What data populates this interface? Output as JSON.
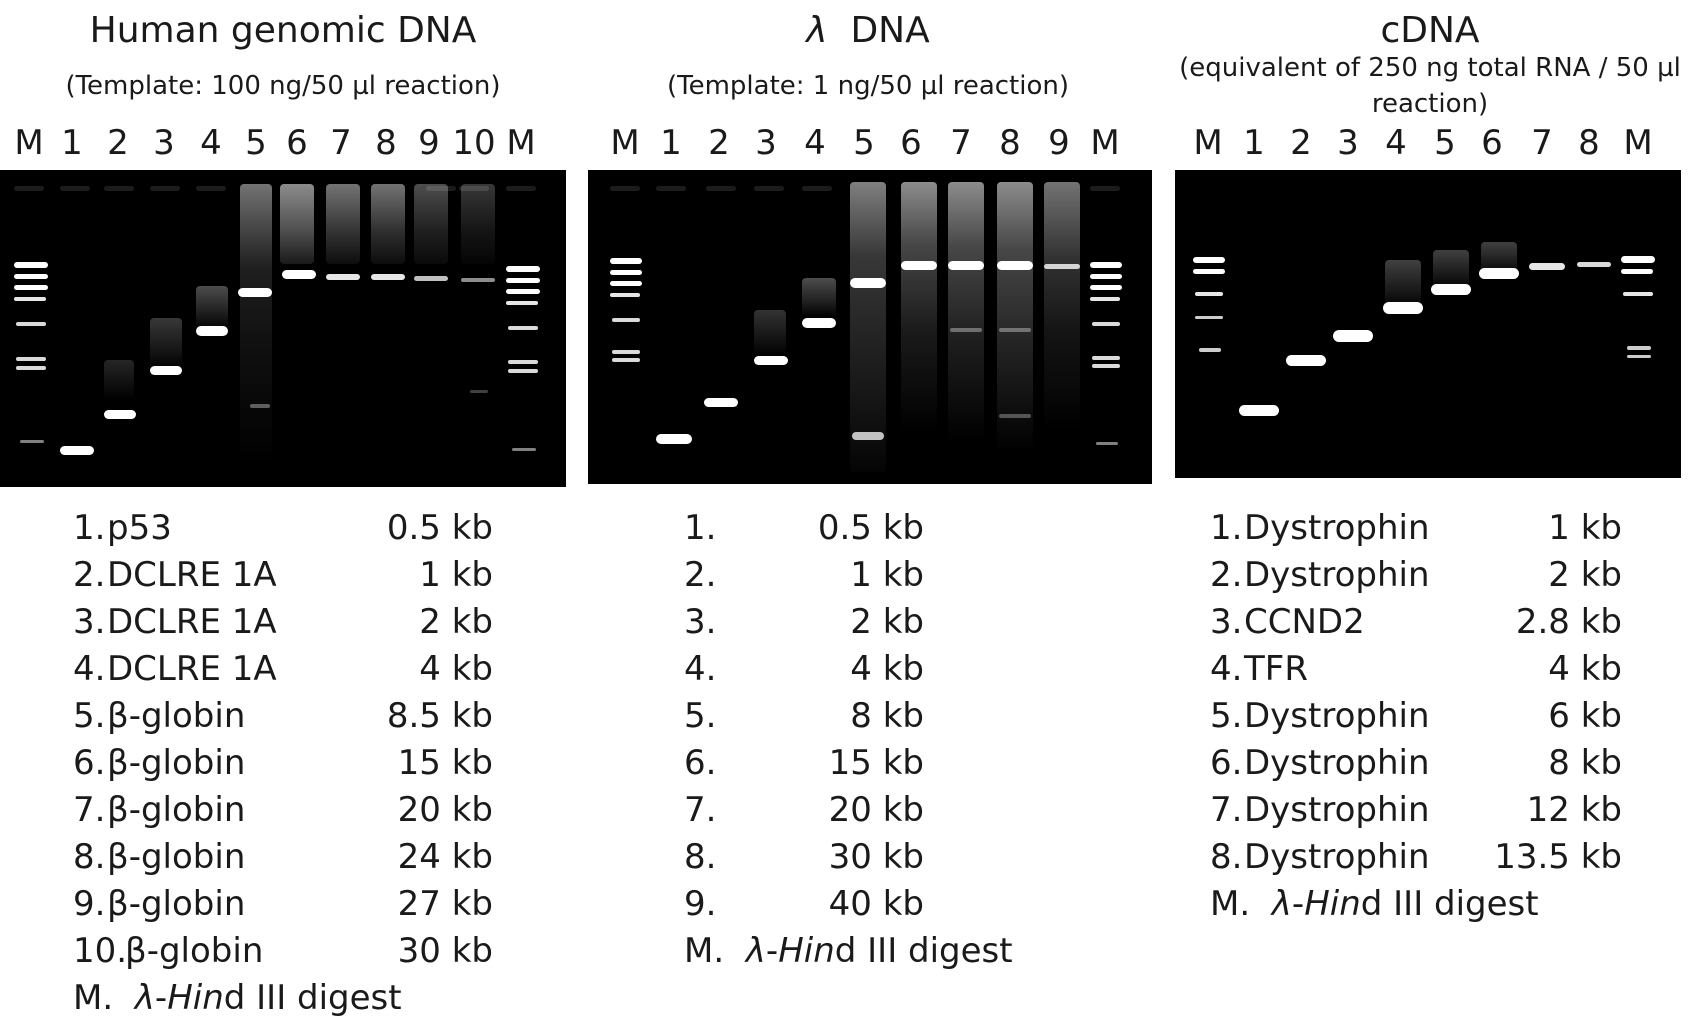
{
  "panels": [
    {
      "id": "human",
      "title": "Human genomic DNA",
      "subtitle": "(Template: 100 ng/50 µl reaction)",
      "lanes": [
        "M",
        "1",
        "2",
        "3",
        "4",
        "5",
        "6",
        "7",
        "8",
        "9",
        "10",
        "M"
      ],
      "legend": [
        {
          "num": "1.",
          "gene": "p53",
          "size": "0.5 kb"
        },
        {
          "num": "2.",
          "gene": "DCLRE 1A",
          "size": "1 kb"
        },
        {
          "num": "3.",
          "gene": "DCLRE 1A",
          "size": "2 kb"
        },
        {
          "num": "4.",
          "gene": "DCLRE 1A",
          "size": "4 kb"
        },
        {
          "num": "5.",
          "gene": "β-globin",
          "size": "8.5 kb"
        },
        {
          "num": "6.",
          "gene": "β-globin",
          "size": "15 kb"
        },
        {
          "num": "7.",
          "gene": "β-globin",
          "size": "20 kb"
        },
        {
          "num": "8.",
          "gene": "β-globin",
          "size": "24 kb"
        },
        {
          "num": "9.",
          "gene": "β-globin",
          "size": "27 kb"
        },
        {
          "num": "10.",
          "gene": "β-globin",
          "size": "30 kb"
        }
      ],
      "marker": {
        "prefix": "M.",
        "lambda": "λ",
        "dash": "-",
        "enzyme_italic": "Hin",
        "enzyme_rest": "d III digest"
      }
    },
    {
      "id": "lambda",
      "title_symbol": "λ",
      "title": "DNA",
      "subtitle": "(Template: 1 ng/50 µl reaction)",
      "lanes": [
        "M",
        "1",
        "2",
        "3",
        "4",
        "5",
        "6",
        "7",
        "8",
        "9",
        "M"
      ],
      "legend": [
        {
          "num": "1.",
          "size": "0.5 kb"
        },
        {
          "num": "2.",
          "size": "1 kb"
        },
        {
          "num": "3.",
          "size": "2 kb"
        },
        {
          "num": "4.",
          "size": "4 kb"
        },
        {
          "num": "5.",
          "size": "8 kb"
        },
        {
          "num": "6.",
          "size": "15 kb"
        },
        {
          "num": "7.",
          "size": "20 kb"
        },
        {
          "num": "8.",
          "size": "30 kb"
        },
        {
          "num": "9.",
          "size": "40 kb"
        }
      ],
      "marker": {
        "prefix": "M.",
        "lambda": "λ",
        "dash": "-",
        "enzyme_italic": "Hin",
        "enzyme_rest": "d III digest"
      }
    },
    {
      "id": "cdna",
      "title": "cDNA",
      "subtitle_line1": "(equivalent of 250 ng total RNA / 50 µl",
      "subtitle_line2": "reaction)",
      "lanes": [
        "M",
        "1",
        "2",
        "3",
        "4",
        "5",
        "6",
        "7",
        "8",
        "M"
      ],
      "legend": [
        {
          "num": "1.",
          "gene": "Dystrophin",
          "size": "1 kb"
        },
        {
          "num": "2.",
          "gene": "Dystrophin",
          "size": "2 kb"
        },
        {
          "num": "3.",
          "gene": "CCND2",
          "size": "2.8 kb"
        },
        {
          "num": "4.",
          "gene": "TFR",
          "size": "4 kb"
        },
        {
          "num": "5.",
          "gene": "Dystrophin",
          "size": "6 kb"
        },
        {
          "num": "6.",
          "gene": "Dystrophin",
          "size": "8 kb"
        },
        {
          "num": "7.",
          "gene": "Dystrophin",
          "size": "12 kb"
        },
        {
          "num": "8.",
          "gene": "Dystrophin",
          "size": "13.5 kb"
        }
      ],
      "marker": {
        "prefix": "M.",
        "lambda": "λ",
        "dash": "-",
        "enzyme_italic": "Hin",
        "enzyme_rest": "d III digest"
      }
    }
  ]
}
